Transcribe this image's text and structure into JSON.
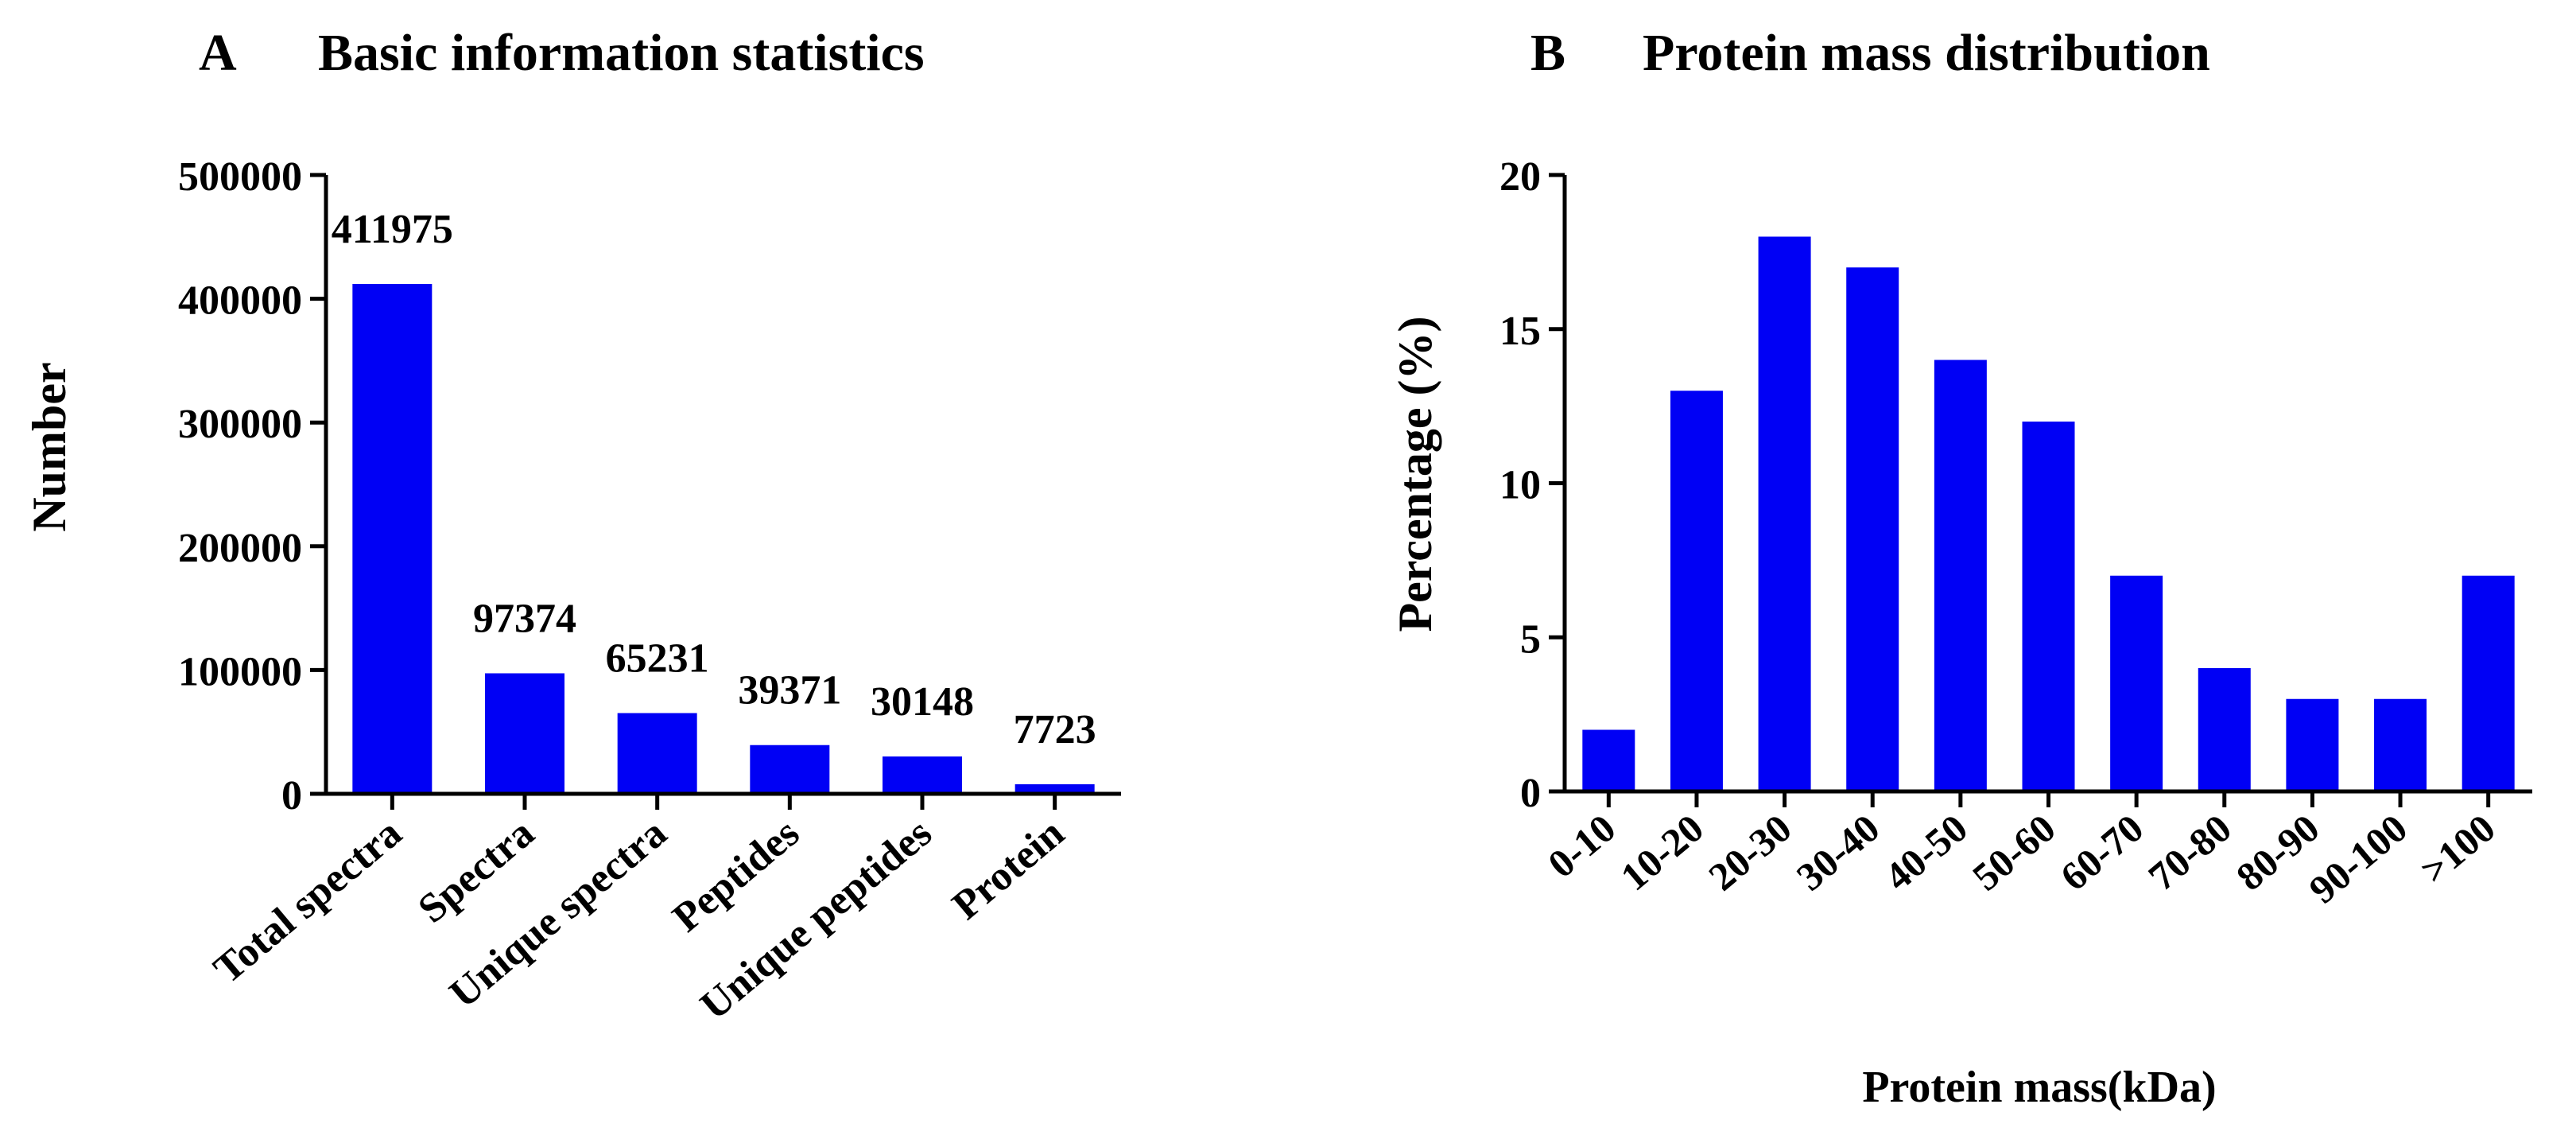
{
  "colors": {
    "bar": "#0000f5",
    "axis": "#000000",
    "text": "#000000",
    "background": "#ffffff"
  },
  "chart_data": [
    {
      "type": "bar",
      "panel_label": "A",
      "title": "Basic information statistics",
      "xlabel": "",
      "ylabel": "Number",
      "categories": [
        "Total spectra",
        "Spectra",
        "Unique spectra",
        "Peptides",
        "Unique peptides",
        "Protein"
      ],
      "values": [
        411975,
        97374,
        65231,
        39371,
        30148,
        7723
      ],
      "data_labels": [
        "411975",
        "97374",
        "65231",
        "39371",
        "30148",
        "7723"
      ],
      "ylim": [
        0,
        500000
      ],
      "yticks": [
        0,
        100000,
        200000,
        300000,
        400000,
        500000
      ],
      "ytick_labels": [
        "0",
        "100000",
        "200000",
        "300000",
        "400000",
        "500000"
      ],
      "grid": false
    },
    {
      "type": "bar",
      "panel_label": "B",
      "title": "Protein mass distribution",
      "xlabel": "Protein mass(kDa)",
      "ylabel": "Percentage (%)",
      "categories": [
        "0-10",
        "10-20",
        "20-30",
        "30-40",
        "40-50",
        "50-60",
        "60-70",
        "70-80",
        "80-90",
        "90-100",
        ">100"
      ],
      "values": [
        2,
        13,
        18,
        17,
        14,
        12,
        7,
        4,
        3,
        3,
        7
      ],
      "ylim": [
        0,
        20
      ],
      "yticks": [
        0,
        5,
        10,
        15,
        20
      ],
      "ytick_labels": [
        "0",
        "5",
        "10",
        "15",
        "20"
      ],
      "grid": false
    }
  ]
}
